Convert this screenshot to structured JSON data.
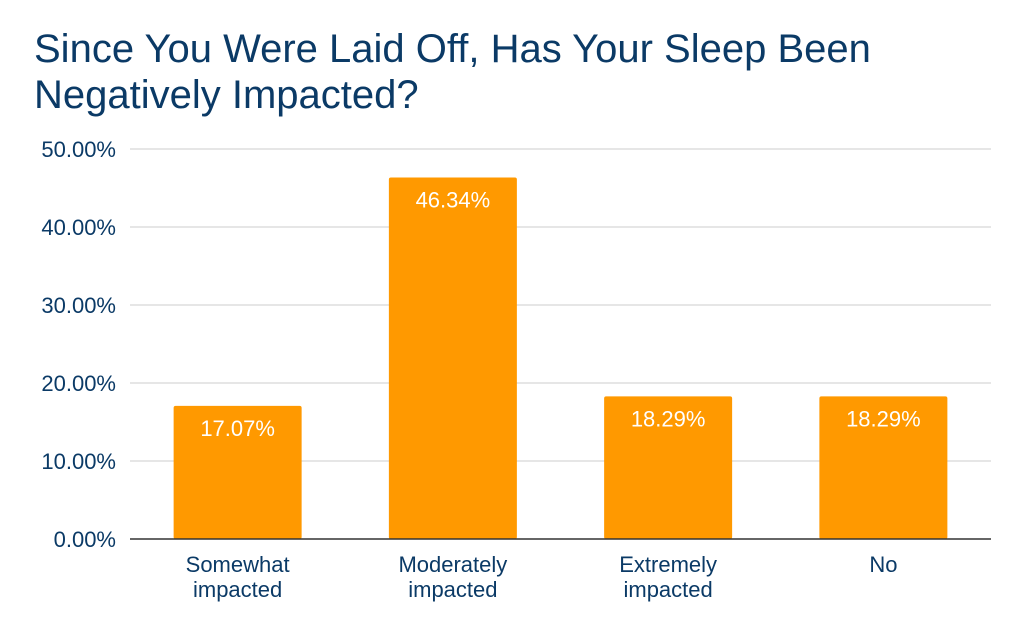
{
  "chart_data": {
    "type": "bar",
    "title": "Since You Were Laid Off, Has Your Sleep Been Negatively Impacted?",
    "xlabel": "",
    "ylabel": "",
    "categories": [
      [
        "Somewhat",
        "impacted"
      ],
      [
        "Moderately",
        "impacted"
      ],
      [
        "Extremely",
        "impacted"
      ],
      [
        "No"
      ]
    ],
    "values": [
      17.07,
      46.34,
      18.29,
      18.29
    ],
    "data_labels": [
      "17.07%",
      "46.34%",
      "18.29%",
      "18.29%"
    ],
    "ylim": [
      0,
      50
    ],
    "y_ticks": [
      0,
      10,
      20,
      30,
      40,
      50
    ],
    "y_tick_labels": [
      "0.00%",
      "10.00%",
      "20.00%",
      "30.00%",
      "40.00%",
      "50.00%"
    ],
    "grid": true,
    "legend": "none",
    "colors": {
      "bar": "#ff9900",
      "title": "#0b3a66",
      "axis_text": "#0b3a66",
      "gridline": "#cccccc",
      "baseline": "#333333",
      "data_label": "#ffffff"
    }
  }
}
